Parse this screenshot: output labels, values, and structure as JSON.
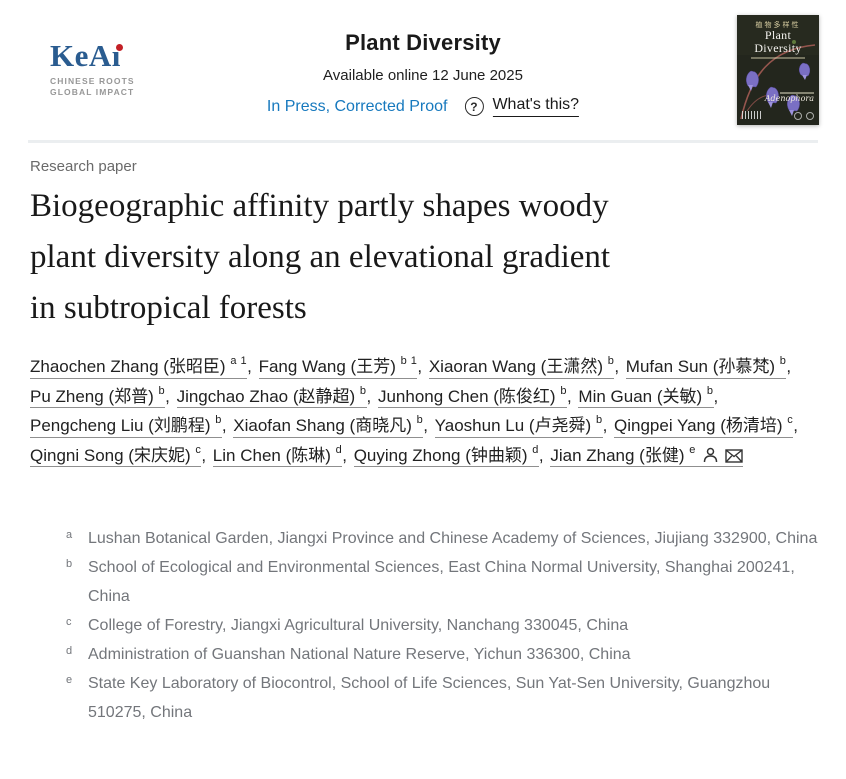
{
  "header": {
    "logo": {
      "brand": "KeAı",
      "tagline_line1": "CHINESE ROOTS",
      "tagline_line2": "GLOBAL IMPACT"
    },
    "journal_title": "Plant Diversity",
    "availability": "Available online 12 June 2025",
    "status_link": "In Press, Corrected Proof",
    "help_icon_glyph": "?",
    "whats_this_label": "What's this?",
    "cover": {
      "cn_title": "植物多样性",
      "title_line1": "Plant",
      "title_line2": "Diversity",
      "species": "Adenophora"
    }
  },
  "article": {
    "type_label": "Research paper",
    "title": "Biogeographic affinity partly shapes woody plant diversity along an elevational gradient in subtropical forests",
    "title_lines": [
      "Biogeographic affinity partly shapes woody",
      "plant diversity along an elevational gradient",
      "in subtropical forests"
    ],
    "authors": [
      {
        "name": "Zhaochen Zhang",
        "cn": "张昭臣",
        "sup": "a 1",
        "icons": false
      },
      {
        "name": "Fang Wang",
        "cn": "王芳",
        "sup": "b 1",
        "icons": false
      },
      {
        "name": "Xiaoran Wang",
        "cn": "王潇然",
        "sup": "b",
        "icons": false
      },
      {
        "name": "Mufan Sun",
        "cn": "孙慕梵",
        "sup": "b",
        "icons": false
      },
      {
        "name": "Pu Zheng",
        "cn": "郑普",
        "sup": "b",
        "icons": false
      },
      {
        "name": "Jingchao Zhao",
        "cn": "赵静超",
        "sup": "b",
        "icons": false
      },
      {
        "name": "Junhong Chen",
        "cn": "陈俊红",
        "sup": "b",
        "icons": false
      },
      {
        "name": "Min Guan",
        "cn": "关敏",
        "sup": "b",
        "icons": false
      },
      {
        "name": "Pengcheng Liu",
        "cn": "刘鹏程",
        "sup": "b",
        "icons": false
      },
      {
        "name": "Xiaofan Shang",
        "cn": "商晓凡",
        "sup": "b",
        "icons": false
      },
      {
        "name": "Yaoshun Lu",
        "cn": "卢尧舜",
        "sup": "b",
        "icons": false
      },
      {
        "name": "Qingpei Yang",
        "cn": "杨清培",
        "sup": "c",
        "icons": false
      },
      {
        "name": "Qingni Song",
        "cn": "宋庆妮",
        "sup": "c",
        "icons": false
      },
      {
        "name": "Lin Chen",
        "cn": "陈琳",
        "sup": "d",
        "icons": false
      },
      {
        "name": "Quying Zhong",
        "cn": "钟曲颖",
        "sup": "d",
        "icons": false
      },
      {
        "name": "Jian Zhang",
        "cn": "张健",
        "sup": "e",
        "icons": true
      }
    ],
    "affiliations": [
      {
        "label": "a",
        "text": "Lushan Botanical Garden, Jiangxi Province and Chinese Academy of Sciences, Jiujiang 332900, China"
      },
      {
        "label": "b",
        "text": "School of Ecological and Environmental Sciences, East China Normal University, Shanghai 200241, China"
      },
      {
        "label": "c",
        "text": "College of Forestry, Jiangxi Agricultural University, Nanchang 330045, China"
      },
      {
        "label": "d",
        "text": "Administration of Guanshan National Nature Reserve, Yichun 336300, China"
      },
      {
        "label": "e",
        "text": "State Key Laboratory of Biocontrol, School of Life Sciences, Sun Yat-Sen University, Guangzhou 510275, China"
      }
    ]
  },
  "colors": {
    "link_blue": "#1779be",
    "brand_navy": "#2a5c90",
    "brand_red": "#c32026",
    "cover_purple": "#7a6fc4",
    "divider_gray": "#ebeef0",
    "affiliation_gray": "#73767b"
  }
}
